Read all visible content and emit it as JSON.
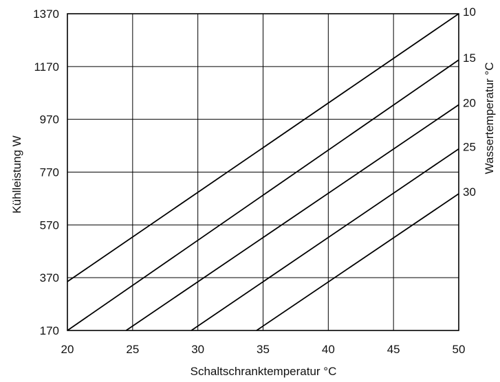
{
  "chart_data": {
    "type": "line",
    "title": "",
    "xlabel": "Schaltschranktemperatur °C",
    "ylabel": "Kühlleistung W",
    "y2label": "Wassertemperatur °C",
    "xlim": [
      20,
      50
    ],
    "ylim": [
      170,
      1370
    ],
    "xticks": [
      "20",
      "25",
      "30",
      "35",
      "40",
      "45",
      "50"
    ],
    "yticks": [
      "170",
      "370",
      "570",
      "770",
      "970",
      "1170",
      "1370"
    ],
    "grid": true,
    "line_color": "#000000",
    "series": [
      {
        "name": "10",
        "x": [
          20,
          50
        ],
        "y": [
          355,
          1370
        ]
      },
      {
        "name": "15",
        "x": [
          20,
          50
        ],
        "y": [
          170,
          1195
        ]
      },
      {
        "name": "20",
        "x": [
          24.5,
          50
        ],
        "y": [
          170,
          1025
        ]
      },
      {
        "name": "25",
        "x": [
          29.5,
          50
        ],
        "y": [
          170,
          858
        ]
      },
      {
        "name": "30",
        "x": [
          34.5,
          50
        ],
        "y": [
          170,
          688
        ]
      }
    ]
  }
}
